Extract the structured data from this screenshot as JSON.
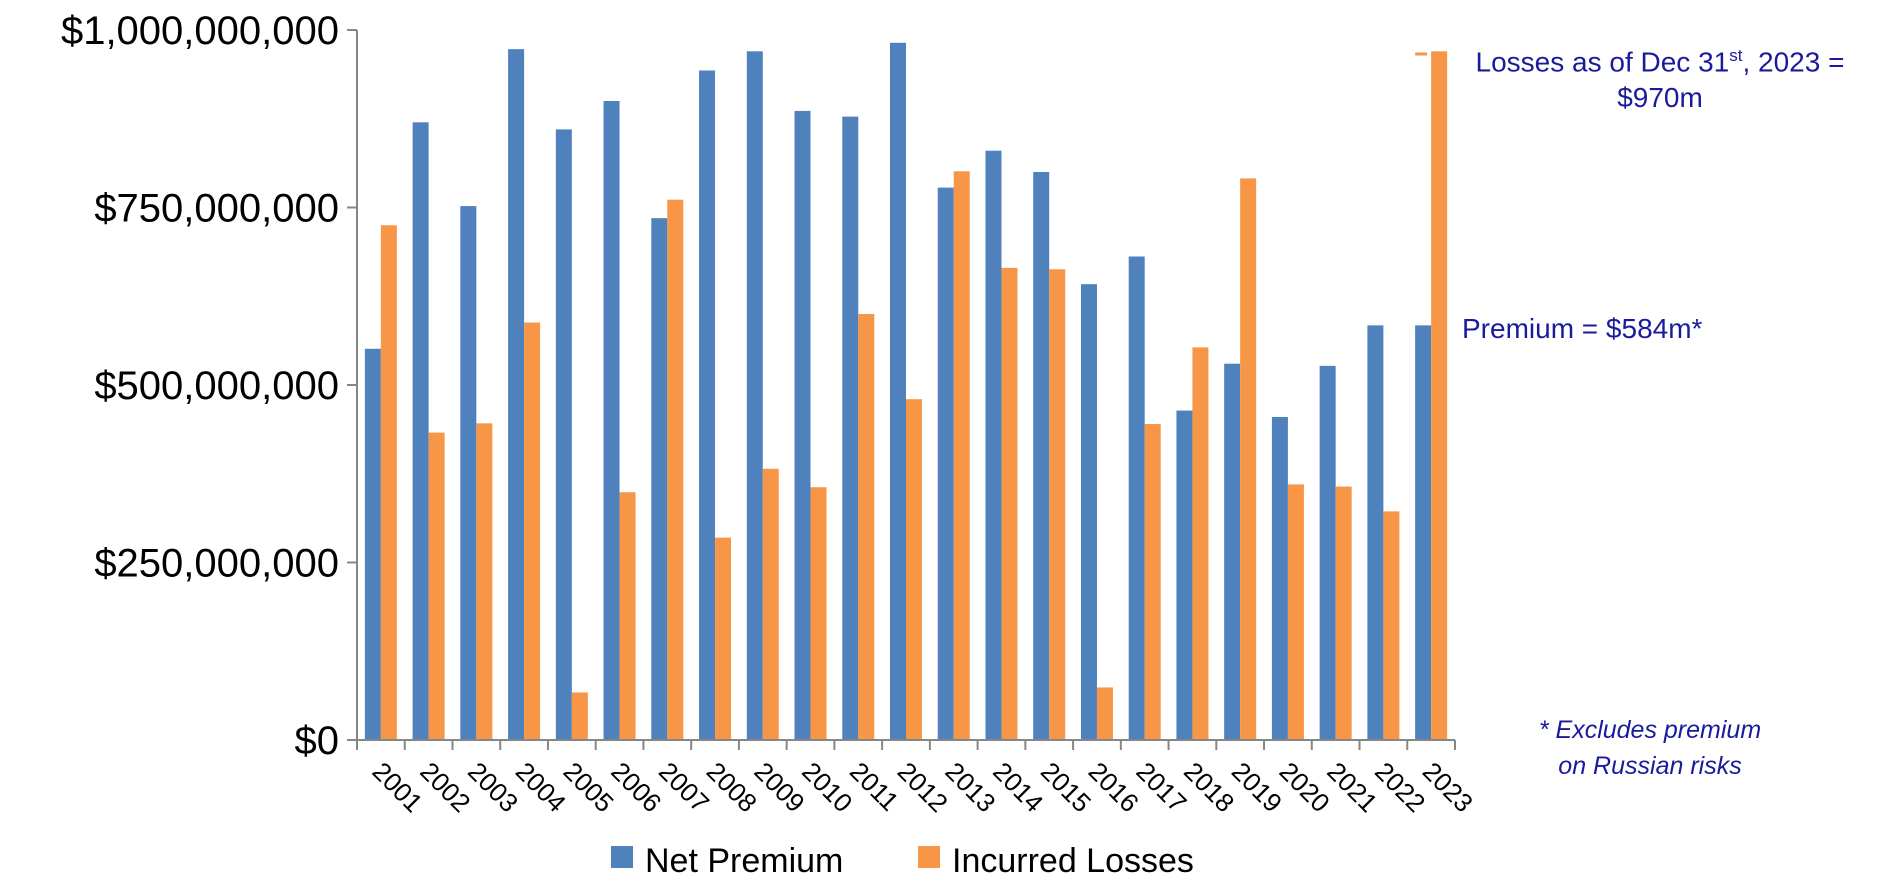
{
  "chart_data": {
    "type": "bar",
    "categories": [
      "2001",
      "2002",
      "2003",
      "2004",
      "2005",
      "2006",
      "2007",
      "2008",
      "2009",
      "2010",
      "2011",
      "2012",
      "2013",
      "2014",
      "2015",
      "2016",
      "2017",
      "2018",
      "2019",
      "2020",
      "2021",
      "2022",
      "2023"
    ],
    "series": [
      {
        "name": "Net Premium",
        "color": "#4f81bd",
        "values": [
          551000000,
          870000000,
          752000000,
          973000000,
          860000000,
          900000000,
          735000000,
          943000000,
          970000000,
          886000000,
          878000000,
          982000000,
          778000000,
          830000000,
          800000000,
          642000000,
          681000000,
          464000000,
          530000000,
          455000000,
          527000000,
          584000000,
          584000000
        ]
      },
      {
        "name": "Incurred Losses",
        "color": "#f79646",
        "values": [
          725000000,
          433000000,
          446000000,
          588000000,
          67000000,
          349000000,
          761000000,
          285000000,
          382000000,
          356000000,
          600000000,
          480000000,
          801000000,
          665000000,
          663000000,
          74000000,
          445000000,
          553000000,
          791000000,
          360000000,
          357000000,
          322000000,
          970000000
        ]
      }
    ],
    "ylim": [
      0,
      1000000000
    ],
    "yticks": [
      0,
      250000000,
      500000000,
      750000000,
      1000000000
    ],
    "ytick_labels": [
      "$0",
      "$250,000,000",
      "$500,000,000",
      "$750,000,000",
      "$1,000,000,000"
    ],
    "legend": {
      "placement": "bottom-center",
      "entries": [
        "Net Premium",
        "Incurred Losses"
      ]
    },
    "grid": false
  },
  "annotations": {
    "losses_line1_pre": "Losses as of Dec 31",
    "losses_sup": "st",
    "losses_line1_post": ", 2023 =",
    "losses_line2": "$970m",
    "premium": "Premium = $584m*",
    "excludes_line1": "* Excludes premium",
    "excludes_line2": "on Russian risks"
  }
}
